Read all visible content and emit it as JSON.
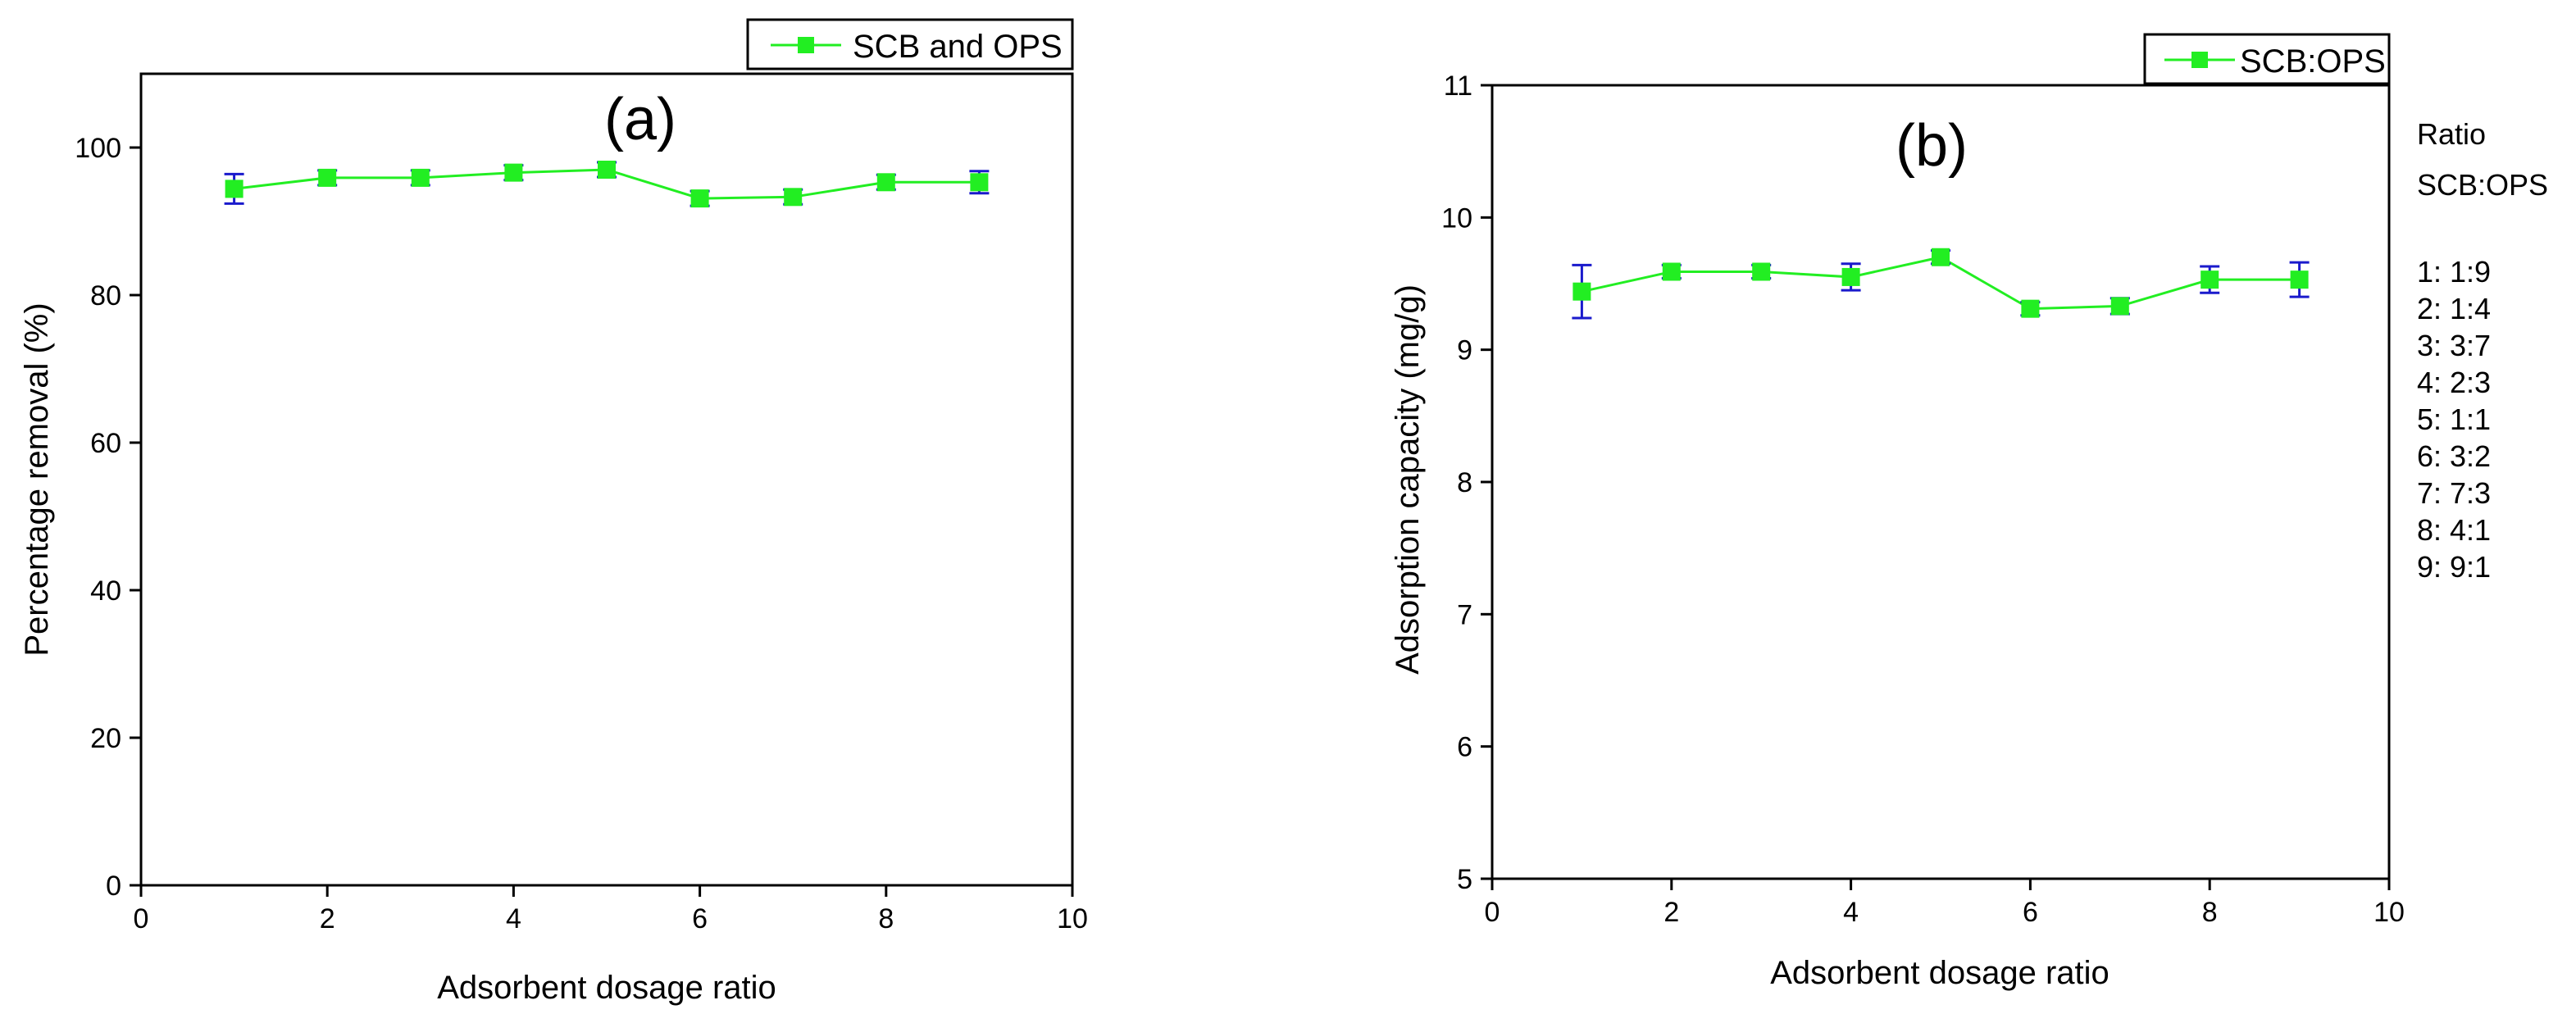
{
  "chart_data": [
    {
      "type": "line",
      "panel_label": "(a)",
      "title": "",
      "xlabel": "Adsorbent dosage ratio",
      "ylabel": "Percentage removal (%)",
      "xlim": [
        0,
        10
      ],
      "ylim": [
        0,
        110
      ],
      "xticks": [
        0,
        2,
        4,
        6,
        8,
        10
      ],
      "yticks": [
        0,
        20,
        40,
        60,
        80,
        100
      ],
      "grid": false,
      "legend": {
        "placement": "top-right",
        "entries": [
          "SCB and OPS"
        ]
      },
      "series": [
        {
          "name": "SCB and OPS",
          "color": "#22ee22",
          "marker": "square",
          "error_color": "#1a1acc",
          "x": [
            1,
            2,
            3,
            4,
            5,
            6,
            7,
            8,
            9
          ],
          "values": [
            94.4,
            95.9,
            95.9,
            96.6,
            97.0,
            93.1,
            93.3,
            95.3,
            95.3
          ],
          "errors": [
            2.0,
            1.0,
            1.0,
            1.0,
            1.0,
            1.0,
            1.0,
            1.0,
            1.5
          ]
        }
      ]
    },
    {
      "type": "line",
      "panel_label": "(b)",
      "title": "",
      "xlabel": "Adsorbent dosage ratio",
      "ylabel": "Adsorption capacity (mg/g)",
      "xlim": [
        0,
        10
      ],
      "ylim": [
        5,
        11
      ],
      "xticks": [
        0,
        2,
        4,
        6,
        8,
        10
      ],
      "yticks": [
        5,
        6,
        7,
        8,
        9,
        10,
        11
      ],
      "grid": false,
      "legend": {
        "placement": "top-right",
        "entries": [
          "SCB:OPS"
        ]
      },
      "series": [
        {
          "name": "SCB:OPS",
          "color": "#22ee22",
          "marker": "square",
          "error_color": "#1a1acc",
          "x": [
            1,
            2,
            3,
            4,
            5,
            6,
            7,
            8,
            9
          ],
          "values": [
            9.44,
            9.59,
            9.59,
            9.55,
            9.7,
            9.31,
            9.33,
            9.53,
            9.53
          ],
          "errors": [
            0.2,
            0.05,
            0.05,
            0.1,
            0.05,
            0.05,
            0.06,
            0.1,
            0.13
          ]
        }
      ],
      "annotations": {
        "ratio_title": [
          "Ratio",
          "SCB:OPS"
        ],
        "ratio_items": [
          "1: 1:9",
          "2: 1:4",
          "3: 3:7",
          "4: 2:3",
          "5: 1:1",
          "6: 3:2",
          "7: 7:3",
          "8: 4:1",
          "9: 9:1"
        ]
      }
    }
  ]
}
